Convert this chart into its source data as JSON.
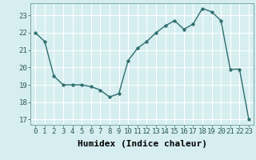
{
  "x": [
    0,
    1,
    2,
    3,
    4,
    5,
    6,
    7,
    8,
    9,
    10,
    11,
    12,
    13,
    14,
    15,
    16,
    17,
    18,
    19,
    20,
    21,
    22,
    23
  ],
  "y": [
    22.0,
    21.5,
    19.5,
    19.0,
    19.0,
    19.0,
    18.9,
    18.7,
    18.3,
    18.5,
    20.4,
    21.1,
    21.5,
    22.0,
    22.4,
    22.7,
    22.2,
    22.5,
    23.4,
    23.2,
    22.7,
    19.9,
    19.9,
    17.0
  ],
  "xlabel": "Humidex (Indice chaleur)",
  "ylim": [
    16.7,
    23.7
  ],
  "xlim": [
    -0.5,
    23.5
  ],
  "yticks": [
    17,
    18,
    19,
    20,
    21,
    22,
    23
  ],
  "xticks": [
    0,
    1,
    2,
    3,
    4,
    5,
    6,
    7,
    8,
    9,
    10,
    11,
    12,
    13,
    14,
    15,
    16,
    17,
    18,
    19,
    20,
    21,
    22,
    23
  ],
  "line_color": "#2d6e6e",
  "marker": "o",
  "marker_size": 2.5,
  "bg_color": "#d6eef0",
  "grid_color": "#ffffff",
  "xlabel_fontsize": 8,
  "tick_fontsize": 6.5,
  "linewidth": 1.0
}
